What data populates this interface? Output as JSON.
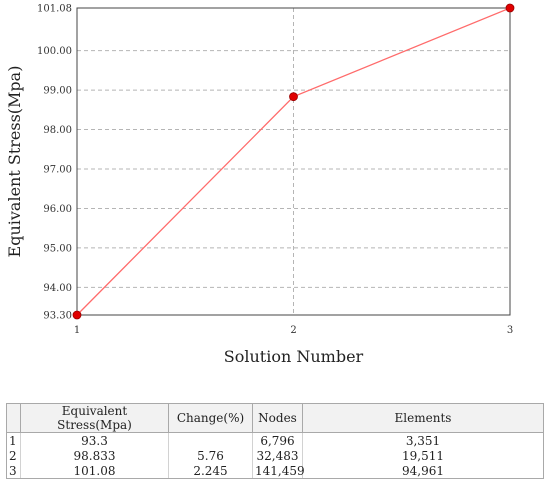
{
  "chart_data": {
    "type": "line",
    "x": [
      1,
      2,
      3
    ],
    "y": [
      93.3,
      98.833,
      101.08
    ],
    "xlabel": "Solution Number",
    "ylabel": "Equivalent Stress(Mpa)",
    "x_ticks": [
      "1",
      "2",
      "3"
    ],
    "y_ticks": [
      "93.30",
      "94.00",
      "95.00",
      "96.00",
      "97.00",
      "98.00",
      "99.00",
      "100.00",
      "101.08"
    ],
    "y_tick_values": [
      93.3,
      94,
      95,
      96,
      97,
      98,
      99,
      100,
      101.08
    ],
    "xlim": [
      1,
      3
    ],
    "ylim": [
      93.3,
      101.08
    ],
    "grid": true,
    "line_color": "#ff6b6b",
    "marker_color": "#e00000"
  },
  "table": {
    "columns": [
      "",
      "Equivalent Stress(Mpa)",
      "Change(%)",
      "Nodes",
      "Elements"
    ],
    "rows": [
      [
        "1",
        "93.3",
        "",
        "6,796",
        "3,351"
      ],
      [
        "2",
        "98.833",
        "5.76",
        "32,483",
        "19,511"
      ],
      [
        "3",
        "101.08",
        "2.245",
        "141,459",
        "94,961"
      ]
    ]
  }
}
